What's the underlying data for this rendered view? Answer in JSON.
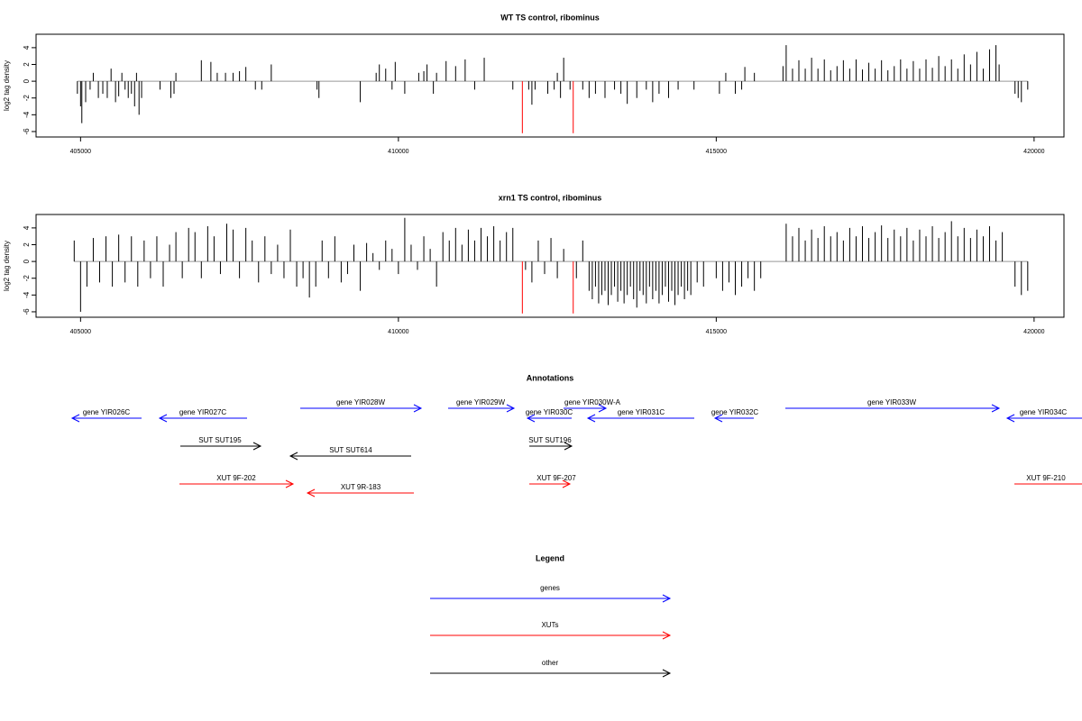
{
  "chart_data": [
    {
      "type": "bar",
      "title": "WT TS control, ribominus",
      "y_label": "log2 tag density",
      "xlim": [
        404300,
        420470
      ],
      "xticks": [
        405000,
        410000,
        415000,
        420000
      ],
      "ylim": [
        -6.65,
        5.6
      ],
      "yticks": [
        -6,
        -4,
        -2,
        0,
        2,
        4
      ],
      "series": [
        {
          "color": "#000000",
          "x": [
            404950,
            405000,
            405020,
            405080,
            405150,
            405200,
            405280,
            405350,
            405420,
            405480,
            405550,
            405600,
            405650,
            405700,
            405750,
            405800,
            405850,
            405880,
            405920,
            405960,
            406250,
            406420,
            406470,
            406500,
            406900,
            407050,
            407150,
            407280,
            407400,
            407500,
            407600,
            407750,
            407850,
            408000,
            408720,
            408750,
            409400,
            409650,
            409700,
            409800,
            409900,
            409950,
            410100,
            410320,
            410400,
            410450,
            410550,
            410600,
            410750,
            410900,
            411050,
            411200,
            411350,
            411800,
            412050,
            412100,
            412150,
            412350,
            412450,
            412500,
            412550,
            412600,
            412700,
            412900,
            413000,
            413100,
            413250,
            413400,
            413500,
            413600,
            413750,
            413900,
            414000,
            414100,
            414250,
            414400,
            414650,
            415050,
            415150,
            415300,
            415400,
            415450,
            415600,
            416050,
            416100,
            416200,
            416300,
            416400,
            416500,
            416600,
            416700,
            416800,
            416900,
            417000,
            417100,
            417200,
            417300,
            417400,
            417500,
            417600,
            417700,
            417800,
            417900,
            418000,
            418100,
            418200,
            418300,
            418400,
            418500,
            418600,
            418700,
            418800,
            418900,
            419000,
            419100,
            419200,
            419300,
            419400,
            419450,
            419700,
            419750,
            419800,
            419900
          ],
          "values": [
            -1.5,
            -3,
            -5,
            -2.5,
            -1,
            1,
            -2,
            -1.5,
            -2,
            1.5,
            -2.5,
            -1.8,
            1,
            -1,
            -2,
            -1.5,
            -3,
            1,
            -4,
            -2,
            -1,
            -2,
            -1.5,
            1,
            2.5,
            2.3,
            1,
            1,
            1,
            1.2,
            1.7,
            -1,
            -1,
            2,
            -1,
            -2,
            -2.5,
            1,
            2,
            1.5,
            -1,
            2.3,
            -1.5,
            1,
            1.2,
            2,
            -1.5,
            1,
            2.4,
            1.8,
            2.6,
            -1,
            2.8,
            -1,
            -1,
            -2.8,
            -1,
            -1.5,
            -1,
            1,
            -2,
            2.8,
            -1,
            -1,
            -2,
            -1.5,
            -2,
            -1,
            -1.5,
            -2.7,
            -2,
            -1,
            -2.5,
            -1.5,
            -2,
            -1,
            -1,
            -1.5,
            1,
            -1.5,
            -1,
            1.7,
            1,
            1.8,
            4.3,
            1.5,
            2.5,
            1.5,
            2.8,
            1.5,
            2.6,
            1.3,
            1.8,
            2.5,
            1.5,
            2.6,
            1.4,
            2.2,
            1.5,
            2.5,
            1.3,
            1.8,
            2.6,
            1.5,
            2.4,
            1.5,
            2.6,
            1.6,
            3,
            1.8,
            2.6,
            1.5,
            3.2,
            2,
            3.5,
            1.5,
            3.8,
            4.3,
            2,
            -1.5,
            -2,
            -2.5,
            -1
          ]
        },
        {
          "color": "#ff0000",
          "x": [
            411950,
            412750
          ],
          "values": [
            -6.2,
            -6.2
          ]
        }
      ]
    },
    {
      "type": "bar",
      "title": "xrn1 TS control, ribominus",
      "y_label": "log2 tag density",
      "xlim": [
        404300,
        420470
      ],
      "xticks": [
        405000,
        410000,
        415000,
        420000
      ],
      "ylim": [
        -6.65,
        5.6
      ],
      "yticks": [
        -6,
        -4,
        -2,
        0,
        2,
        4
      ],
      "series": [
        {
          "color": "#000000",
          "x": [
            404900,
            405000,
            405100,
            405200,
            405300,
            405400,
            405500,
            405600,
            405700,
            405800,
            405900,
            406000,
            406100,
            406200,
            406300,
            406400,
            406500,
            406600,
            406700,
            406800,
            406900,
            407000,
            407100,
            407200,
            407300,
            407400,
            407500,
            407600,
            407700,
            407800,
            407900,
            408000,
            408100,
            408200,
            408300,
            408400,
            408500,
            408600,
            408700,
            408800,
            408900,
            409000,
            409100,
            409200,
            409300,
            409400,
            409500,
            409600,
            409700,
            409800,
            409900,
            410000,
            410100,
            410200,
            410300,
            410400,
            410500,
            410600,
            410700,
            410800,
            410900,
            411000,
            411100,
            411200,
            411300,
            411400,
            411500,
            411600,
            411700,
            411800,
            412000,
            412100,
            412200,
            412300,
            412400,
            412500,
            412600,
            412800,
            412900,
            413000,
            413050,
            413100,
            413150,
            413200,
            413250,
            413300,
            413350,
            413400,
            413450,
            413500,
            413550,
            413600,
            413650,
            413700,
            413750,
            413800,
            413850,
            413900,
            413950,
            414000,
            414050,
            414100,
            414150,
            414200,
            414250,
            414300,
            414350,
            414400,
            414450,
            414500,
            414550,
            414600,
            414700,
            414800,
            415000,
            415100,
            415200,
            415300,
            415400,
            415500,
            415600,
            415700,
            416100,
            416200,
            416300,
            416400,
            416500,
            416600,
            416700,
            416800,
            416900,
            417000,
            417100,
            417200,
            417300,
            417400,
            417500,
            417600,
            417700,
            417800,
            417900,
            418000,
            418100,
            418200,
            418300,
            418400,
            418500,
            418600,
            418700,
            418800,
            418900,
            419000,
            419100,
            419200,
            419300,
            419400,
            419500,
            419700,
            419800,
            419900
          ],
          "values": [
            2.5,
            -6,
            -3,
            2.8,
            -2.5,
            3,
            -3,
            3.2,
            -2.5,
            3,
            -3,
            2.5,
            -2,
            3,
            -3,
            2,
            3.5,
            -2,
            4,
            3.5,
            -2,
            4.2,
            3,
            -1.5,
            4.5,
            3.8,
            -2,
            4,
            2.5,
            -2.5,
            3,
            -1.5,
            2,
            -2,
            3.8,
            -3,
            -2,
            -4.3,
            -3,
            2.5,
            -2,
            3,
            -2.5,
            -1.5,
            2,
            -3.5,
            2.2,
            1,
            -1,
            2.5,
            1.5,
            -1.5,
            5.2,
            2,
            -1,
            3,
            1.5,
            -3,
            3.5,
            2.5,
            4,
            2,
            3.8,
            2.5,
            4,
            3,
            4.2,
            2.5,
            3.5,
            4,
            -1,
            -2.5,
            2.5,
            -1.5,
            2.8,
            -2,
            1.5,
            -2,
            2.5,
            -3.5,
            -4.5,
            -3,
            -5,
            -4,
            -3.5,
            -5.2,
            -4,
            -3,
            -4.8,
            -3.5,
            -5,
            -4,
            -3,
            -4.5,
            -5.5,
            -3.5,
            -4,
            -5,
            -3,
            -4.5,
            -3.5,
            -5,
            -4,
            -3,
            -4.8,
            -3.5,
            -5.2,
            -4,
            -3,
            -4.5,
            -3.5,
            -4,
            -2.5,
            -3,
            -2,
            -3.5,
            -2.5,
            -4,
            -3,
            -2,
            -3.5,
            -2,
            4.5,
            3,
            4,
            2.5,
            3.8,
            2.8,
            4.2,
            3,
            3.5,
            2.5,
            4,
            3,
            4.2,
            2.8,
            3.5,
            4.3,
            2.8,
            3.8,
            3,
            4,
            2.5,
            3.8,
            3,
            4.2,
            2.8,
            3.5,
            4.8,
            3,
            4,
            2.8,
            3.8,
            3,
            4.2,
            2.5,
            3.5,
            -3,
            -4,
            -3.5
          ]
        },
        {
          "color": "#ff0000",
          "x": [
            411950,
            412750
          ],
          "values": [
            -6.2,
            -6.2
          ]
        }
      ]
    }
  ],
  "annotations": {
    "title": "Annotations",
    "features": [
      {
        "label": "gene YIR026C",
        "color": "#0000ff"
      },
      {
        "label": "gene YIR027C",
        "color": "#0000ff"
      },
      {
        "label": "gene YIR028W",
        "color": "#0000ff"
      },
      {
        "label": "gene YIR029W",
        "color": "#0000ff"
      },
      {
        "label": "gene YIR030C",
        "color": "#0000ff"
      },
      {
        "label": "gene YIR030W-A",
        "color": "#0000ff"
      },
      {
        "label": "gene YIR031C",
        "color": "#0000ff"
      },
      {
        "label": "gene YIR032C",
        "color": "#0000ff"
      },
      {
        "label": "gene YIR033W",
        "color": "#0000ff"
      },
      {
        "label": "gene YIR034C",
        "color": "#0000ff"
      },
      {
        "label": "SUT SUT195",
        "color": "#000000"
      },
      {
        "label": "SUT SUT614",
        "color": "#000000"
      },
      {
        "label": "SUT SUT196",
        "color": "#000000"
      },
      {
        "label": "XUT 9F-202",
        "color": "#ff0000"
      },
      {
        "label": "XUT 9R-183",
        "color": "#ff0000"
      },
      {
        "label": "XUT 9F-207",
        "color": "#ff0000"
      },
      {
        "label": "XUT 9F-210",
        "color": "#ff0000"
      }
    ]
  },
  "legend": {
    "title": "Legend",
    "entries": [
      {
        "label": "genes",
        "color": "#0000ff"
      },
      {
        "label": "XUTs",
        "color": "#ff0000"
      },
      {
        "label": "other",
        "color": "#000000"
      }
    ]
  }
}
